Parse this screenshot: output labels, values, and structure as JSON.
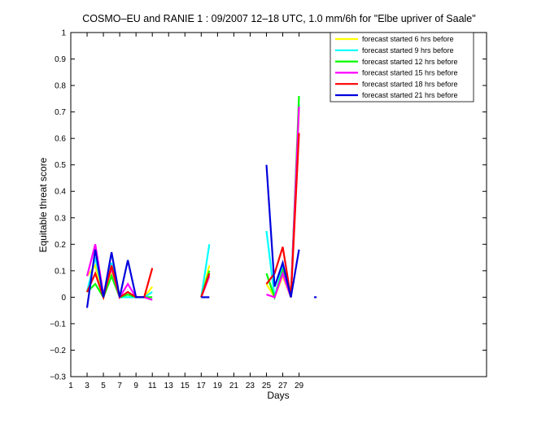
{
  "chart_data": {
    "type": "line",
    "title": "COSMO–EU and RANIE 1 : 09/2007 12–18 UTC, 1.0 mm/6h for \"Elbe upriver of Saale\"",
    "xlabel": "Days",
    "ylabel": "Equitable threat score",
    "xlim": [
      1,
      52
    ],
    "ylim": [
      -0.3,
      1
    ],
    "xticks": [
      1,
      3,
      5,
      7,
      9,
      11,
      13,
      15,
      17,
      19,
      21,
      23,
      25,
      27,
      29
    ],
    "yticks": [
      -0.3,
      -0.2,
      -0.1,
      0,
      0.1,
      0.2,
      0.3,
      0.4,
      0.5,
      0.6,
      0.7,
      0.8,
      0.9,
      1
    ],
    "ytick_labels": [
      "−0.3",
      "−0.2",
      "−0.1",
      "0",
      "0.1",
      "0.2",
      "0.3",
      "0.4",
      "0.5",
      "0.6",
      "0.7",
      "0.8",
      "0.9",
      "1"
    ],
    "grid": false,
    "legend_position": "top-right",
    "series": [
      {
        "name": "forecast started 6 hrs before",
        "color": "#ffff00",
        "segments": [
          [
            [
              3,
              0.08
            ],
            [
              4,
              0.12
            ],
            [
              5,
              0.0
            ],
            [
              6,
              0.1
            ],
            [
              7,
              0.0
            ],
            [
              8,
              0.0
            ],
            [
              9,
              0.0
            ],
            [
              10,
              0.0
            ],
            [
              11,
              0.04
            ]
          ],
          [
            [
              17,
              0.0
            ],
            [
              18,
              0.12
            ]
          ],
          [
            [
              25,
              0.05
            ],
            [
              26,
              0.0
            ],
            [
              27,
              0.08
            ],
            [
              28,
              0.0
            ],
            [
              29,
              0.7
            ]
          ]
        ]
      },
      {
        "name": "forecast started 9 hrs before",
        "color": "#00ffff",
        "segments": [
          [
            [
              3,
              0.02
            ],
            [
              4,
              0.15
            ],
            [
              5,
              0.01
            ],
            [
              6,
              0.13
            ],
            [
              7,
              0.0
            ],
            [
              8,
              0.0
            ],
            [
              9,
              0.0
            ],
            [
              10,
              0.0
            ],
            [
              11,
              0.02
            ]
          ],
          [
            [
              17,
              0.0
            ],
            [
              18,
              0.2
            ]
          ],
          [
            [
              25,
              0.25
            ],
            [
              26,
              0.0
            ],
            [
              27,
              0.12
            ],
            [
              28,
              0.0
            ],
            [
              29,
              0.73
            ]
          ]
        ]
      },
      {
        "name": "forecast started 12 hrs before",
        "color": "#00ff00",
        "segments": [
          [
            [
              3,
              0.02
            ],
            [
              4,
              0.05
            ],
            [
              5,
              0.0
            ],
            [
              6,
              0.08
            ],
            [
              7,
              0.0
            ],
            [
              8,
              0.01
            ],
            [
              9,
              0.0
            ],
            [
              10,
              0.0
            ],
            [
              11,
              0.0
            ]
          ],
          [
            [
              17,
              0.0
            ],
            [
              18,
              0.1
            ]
          ],
          [
            [
              25,
              0.09
            ],
            [
              26,
              0.0
            ],
            [
              27,
              0.1
            ],
            [
              28,
              0.0
            ],
            [
              29,
              0.76
            ]
          ]
        ]
      },
      {
        "name": "forecast started 15 hrs before",
        "color": "#ff00ff",
        "segments": [
          [
            [
              3,
              0.08
            ],
            [
              4,
              0.2
            ],
            [
              5,
              0.01
            ],
            [
              6,
              0.11
            ],
            [
              7,
              0.0
            ],
            [
              8,
              0.05
            ],
            [
              9,
              0.0
            ],
            [
              10,
              0.0
            ],
            [
              11,
              -0.01
            ]
          ],
          [
            [
              17,
              0.0
            ],
            [
              18,
              0.08
            ]
          ],
          [
            [
              25,
              0.01
            ],
            [
              26,
              0.0
            ],
            [
              27,
              0.09
            ],
            [
              28,
              0.0
            ],
            [
              29,
              0.72
            ]
          ]
        ]
      },
      {
        "name": "forecast started 18 hrs before",
        "color": "#ff0000",
        "segments": [
          [
            [
              3,
              0.02
            ],
            [
              4,
              0.09
            ],
            [
              5,
              0.0
            ],
            [
              6,
              0.12
            ],
            [
              7,
              0.0
            ],
            [
              8,
              0.02
            ],
            [
              9,
              0.0
            ],
            [
              10,
              0.0
            ],
            [
              11,
              0.11
            ]
          ],
          [
            [
              17,
              0.0
            ],
            [
              18,
              0.09
            ]
          ],
          [
            [
              25,
              0.05
            ],
            [
              26,
              0.09
            ],
            [
              27,
              0.19
            ],
            [
              28,
              0.0
            ],
            [
              29,
              0.62
            ]
          ]
        ]
      },
      {
        "name": "forecast started 21 hrs before",
        "color": "#0000dd",
        "segments": [
          [
            [
              3,
              -0.04
            ],
            [
              4,
              0.18
            ],
            [
              5,
              0.0
            ],
            [
              6,
              0.17
            ],
            [
              7,
              0.0
            ],
            [
              8,
              0.14
            ],
            [
              9,
              0.0
            ],
            [
              10,
              0.0
            ]
          ],
          [
            [
              17,
              0.0
            ],
            [
              18,
              0.0
            ]
          ],
          [
            [
              25,
              0.5
            ],
            [
              26,
              0.04
            ],
            [
              27,
              0.13
            ],
            [
              28,
              0.0
            ],
            [
              29,
              0.18
            ]
          ],
          [
            [
              31,
              0.0
            ]
          ]
        ]
      }
    ]
  }
}
